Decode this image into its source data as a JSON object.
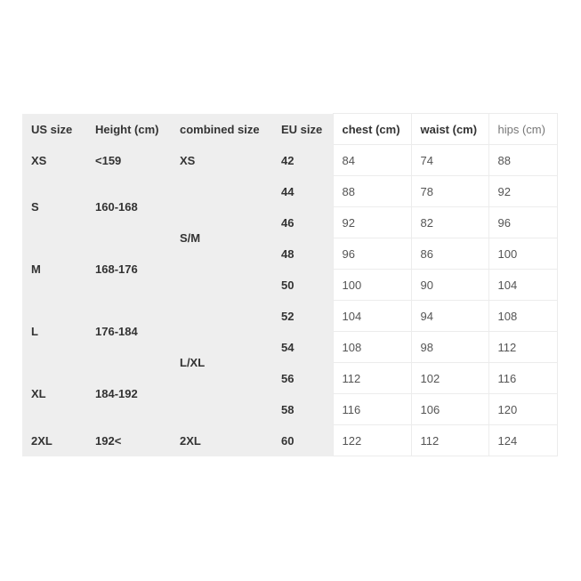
{
  "headers": [
    "US size",
    "Height (cm)",
    "combined size",
    "EU size",
    "chest (cm)",
    "waist (cm)",
    "hips (cm)"
  ],
  "us_sizes": [
    {
      "size": "XS",
      "height": "<159"
    },
    {
      "size": "S",
      "height": "160-168"
    },
    {
      "size": "M",
      "height": "168-176"
    },
    {
      "size": "L",
      "height": "176-184"
    },
    {
      "size": "XL",
      "height": "184-192"
    },
    {
      "size": "2XL",
      "height": "192<"
    }
  ],
  "combined": [
    "XS",
    "S/M",
    "L/XL",
    "2XL"
  ],
  "rows": [
    {
      "eu": "42",
      "chest": "84",
      "waist": "74",
      "hips": "88"
    },
    {
      "eu": "44",
      "chest": "88",
      "waist": "78",
      "hips": "92"
    },
    {
      "eu": "46",
      "chest": "92",
      "waist": "82",
      "hips": "96"
    },
    {
      "eu": "48",
      "chest": "96",
      "waist": "86",
      "hips": "100"
    },
    {
      "eu": "50",
      "chest": "100",
      "waist": "90",
      "hips": "104"
    },
    {
      "eu": "52",
      "chest": "104",
      "waist": "94",
      "hips": "108"
    },
    {
      "eu": "54",
      "chest": "108",
      "waist": "98",
      "hips": "112"
    },
    {
      "eu": "56",
      "chest": "112",
      "waist": "102",
      "hips": "116"
    },
    {
      "eu": "58",
      "chest": "116",
      "waist": "106",
      "hips": "120"
    },
    {
      "eu": "60",
      "chest": "122",
      "waist": "112",
      "hips": "124"
    }
  ]
}
